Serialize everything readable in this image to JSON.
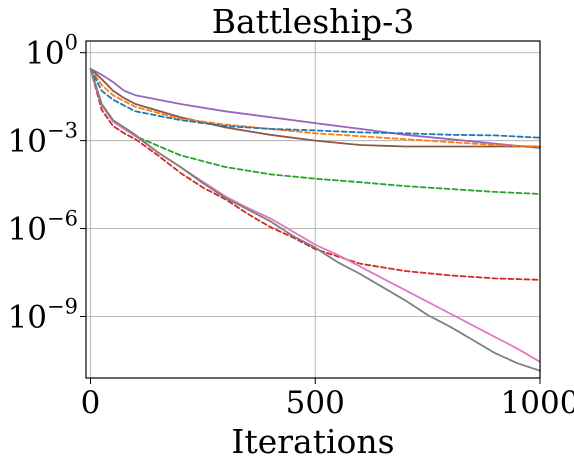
{
  "chart_data": {
    "type": "line",
    "title": "Battleship-3",
    "xlabel": "Iterations",
    "ylabel": "",
    "xlim": [
      -10,
      1000
    ],
    "ylim_log10": [
      -11.1,
      0.4
    ],
    "yscale": "log",
    "grid": true,
    "legend": "none",
    "xticks": [
      {
        "value": 0,
        "label": "0"
      },
      {
        "value": 500,
        "label": "500"
      },
      {
        "value": 1000,
        "label": "1000"
      }
    ],
    "yticks": [
      {
        "log10": 0,
        "base": "10",
        "exp": "0"
      },
      {
        "log10": -3,
        "base": "10",
        "exp": "−3"
      },
      {
        "log10": -6,
        "base": "10",
        "exp": "−6"
      },
      {
        "log10": -9,
        "base": "10",
        "exp": "−9"
      }
    ],
    "series": [
      {
        "color": "#9467bd",
        "style": "solid",
        "x": [
          0,
          25,
          50,
          75,
          100,
          200,
          300,
          400,
          500,
          600,
          700,
          800,
          900,
          1000
        ],
        "log10y": [
          -0.55,
          -0.75,
          -1.0,
          -1.3,
          -1.45,
          -1.75,
          -2.0,
          -2.2,
          -2.4,
          -2.6,
          -2.8,
          -2.95,
          -3.1,
          -3.25
        ]
      },
      {
        "color": "#8c564b",
        "style": "solid",
        "x": [
          0,
          25,
          50,
          75,
          100,
          200,
          300,
          400,
          500,
          600,
          700,
          800,
          900,
          1000
        ],
        "log10y": [
          -0.55,
          -0.9,
          -1.3,
          -1.55,
          -1.75,
          -2.2,
          -2.55,
          -2.8,
          -3.0,
          -3.15,
          -3.2,
          -3.2,
          -3.2,
          -3.2
        ]
      },
      {
        "color": "#ff7f0e",
        "style": "dashed",
        "x": [
          0,
          25,
          50,
          75,
          100,
          200,
          300,
          400,
          500,
          600,
          700,
          800,
          900,
          1000
        ],
        "log10y": [
          -0.55,
          -1.1,
          -1.45,
          -1.65,
          -1.85,
          -2.25,
          -2.45,
          -2.6,
          -2.75,
          -2.85,
          -2.95,
          -3.05,
          -3.15,
          -3.2
        ]
      },
      {
        "color": "#1f77b4",
        "style": "dashed",
        "x": [
          0,
          25,
          50,
          75,
          100,
          200,
          300,
          400,
          500,
          600,
          700,
          800,
          900,
          1000
        ],
        "log10y": [
          -0.55,
          -1.3,
          -1.6,
          -1.8,
          -2.0,
          -2.3,
          -2.5,
          -2.6,
          -2.65,
          -2.72,
          -2.75,
          -2.8,
          -2.82,
          -2.9
        ]
      },
      {
        "color": "#2ca02c",
        "style": "dashed",
        "x": [
          0,
          25,
          50,
          75,
          100,
          200,
          300,
          400,
          500,
          600,
          700,
          800,
          900,
          1000
        ],
        "log10y": [
          -0.55,
          -1.75,
          -2.3,
          -2.6,
          -2.85,
          -3.5,
          -3.9,
          -4.15,
          -4.3,
          -4.42,
          -4.55,
          -4.65,
          -4.75,
          -4.82
        ]
      },
      {
        "color": "#d62728",
        "style": "dashed",
        "x": [
          0,
          25,
          50,
          75,
          100,
          150,
          200,
          250,
          300,
          350,
          400,
          450,
          500,
          600,
          700,
          800,
          900,
          1000
        ],
        "log10y": [
          -0.55,
          -1.95,
          -2.5,
          -2.75,
          -2.95,
          -3.5,
          -4.1,
          -4.6,
          -5.0,
          -5.5,
          -5.95,
          -6.3,
          -6.7,
          -7.2,
          -7.45,
          -7.6,
          -7.7,
          -7.75
        ]
      },
      {
        "color": "#e377c2",
        "style": "solid",
        "x": [
          0,
          25,
          50,
          75,
          100,
          150,
          200,
          250,
          300,
          350,
          400,
          450,
          500,
          550,
          600,
          650,
          700,
          750,
          800,
          850,
          900,
          950,
          1000
        ],
        "log10y": [
          -0.55,
          -1.8,
          -2.35,
          -2.6,
          -2.85,
          -3.4,
          -3.9,
          -4.4,
          -4.9,
          -5.3,
          -5.65,
          -6.1,
          -6.55,
          -6.9,
          -7.3,
          -7.7,
          -8.1,
          -8.5,
          -8.9,
          -9.3,
          -9.7,
          -10.1,
          -10.55
        ]
      },
      {
        "color": "#7f7f7f",
        "style": "solid",
        "x": [
          0,
          25,
          50,
          75,
          100,
          150,
          200,
          250,
          300,
          350,
          400,
          450,
          500,
          550,
          600,
          650,
          700,
          750,
          800,
          850,
          900,
          950,
          1000
        ],
        "log10y": [
          -0.55,
          -1.75,
          -2.3,
          -2.55,
          -2.8,
          -3.4,
          -3.9,
          -4.45,
          -4.95,
          -5.35,
          -5.75,
          -6.25,
          -6.65,
          -7.15,
          -7.55,
          -8.0,
          -8.45,
          -8.95,
          -9.35,
          -9.8,
          -10.25,
          -10.6,
          -10.85
        ]
      }
    ]
  }
}
